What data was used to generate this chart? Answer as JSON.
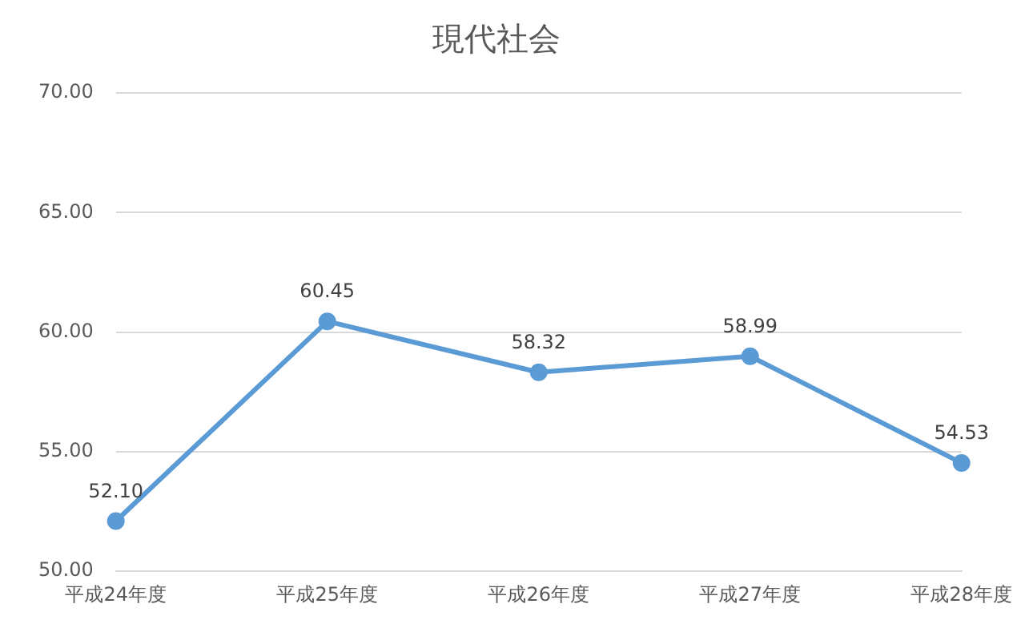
{
  "chart_data": {
    "type": "line",
    "title": "現代社会",
    "categories": [
      "平成24年度",
      "平成25年度",
      "平成26年度",
      "平成27年度",
      "平成28年度"
    ],
    "series": [
      {
        "color": "#5b9bd5",
        "values": [
          52.1,
          60.45,
          58.32,
          58.99,
          54.53
        ],
        "value_labels": [
          "52.10",
          "60.45",
          "58.32",
          "58.99",
          "54.53"
        ]
      }
    ],
    "ylim": [
      50,
      70
    ],
    "yticks": [
      {
        "value": 50,
        "label": "50.00"
      },
      {
        "value": 55,
        "label": "55.00"
      },
      {
        "value": 60,
        "label": "60.00"
      },
      {
        "value": 65,
        "label": "65.00"
      },
      {
        "value": 70,
        "label": "70.00"
      }
    ],
    "grid": "y",
    "legend": false,
    "marker": "circle",
    "line_style": "solid"
  }
}
